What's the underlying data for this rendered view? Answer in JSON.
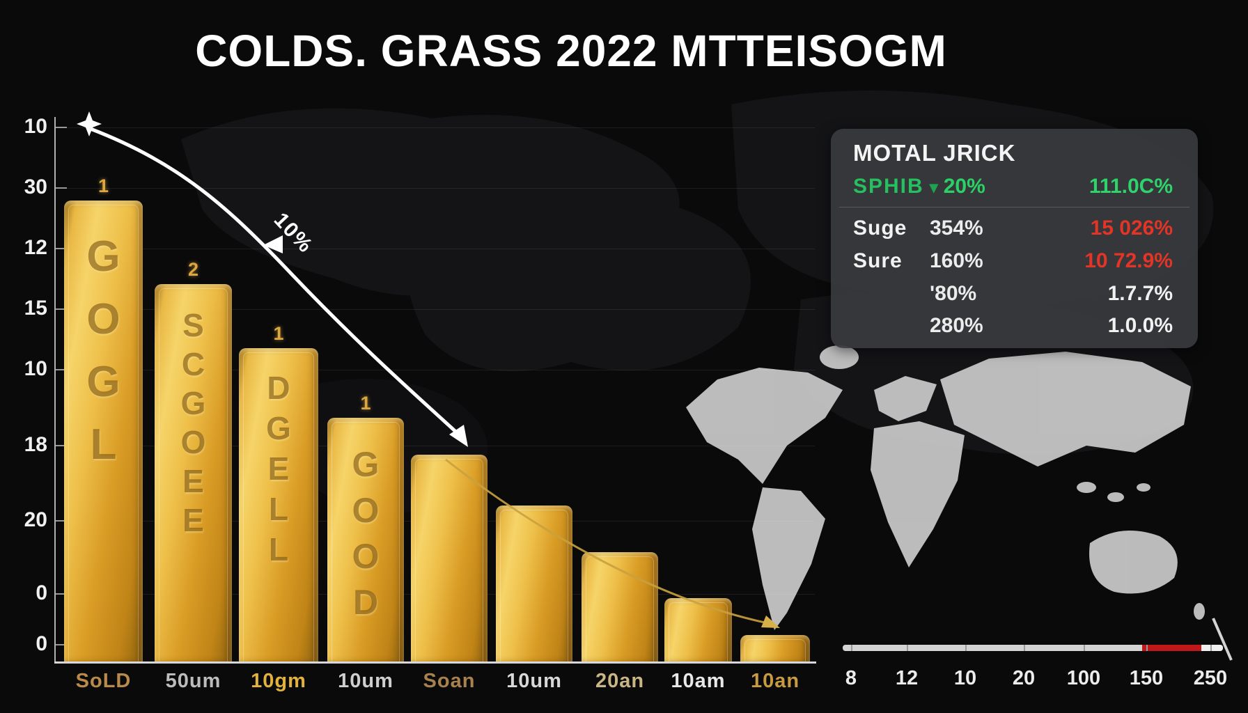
{
  "title": "COLDS. GRASS 2022 MTTEISOGM",
  "chart_data": {
    "type": "bar",
    "title": "COLDS. GRASS 2022 MTTEISOGM",
    "categories": [
      "SoLD",
      "50um",
      "10gm",
      "10um",
      "Soan",
      "10um",
      "20an",
      "10am",
      "10an"
    ],
    "values": [
      100,
      82,
      68,
      53,
      45,
      34,
      24,
      14,
      6
    ],
    "ylabel": "",
    "xlabel": "",
    "ylim": [
      0,
      100
    ],
    "grid": "faint horizontal",
    "y_tick_labels": [
      "10",
      "30",
      "12",
      "15",
      "10",
      "18",
      "20",
      "0",
      "0"
    ],
    "bar_rank_numbers": [
      "1",
      "2",
      "1",
      "1",
      "",
      "",
      "",
      "",
      ""
    ],
    "bar_embossed_text": [
      "GOGL",
      "SCGOEE",
      "DGELL",
      "GOOD",
      "",
      "",
      "",
      "",
      ""
    ],
    "x_labels": [
      {
        "text": "SoLD",
        "color": "#b98a4a"
      },
      {
        "text": "50um",
        "color": "#bcbcbc"
      },
      {
        "text": "10gm",
        "color": "#e3b23c"
      },
      {
        "text": "10um",
        "color": "#cfcfcf"
      },
      {
        "text": "Soan",
        "color": "#a8824e"
      },
      {
        "text": "10um",
        "color": "#d8d8d8"
      },
      {
        "text": "20an",
        "color": "#c9b684"
      },
      {
        "text": "10am",
        "color": "#e8e8e8"
      },
      {
        "text": "10an",
        "color": "#c79b3f"
      }
    ],
    "annotation": {
      "label": "10%",
      "description": "white curved arrow falling left-to-right across bars"
    },
    "secondary_axis_ticks": [
      "8",
      "12",
      "10",
      "20",
      "100",
      "150",
      "250"
    ]
  },
  "panel": {
    "header": "MOTAL JRICK",
    "highlight": {
      "symbol": "SPHIB",
      "arrow_glyph": "▾",
      "change": "20%",
      "value": "111.0C%"
    },
    "rows": [
      {
        "label": "Suge",
        "v1": "354%",
        "v2": "15 026%",
        "v2_color": "red"
      },
      {
        "label": "Sure",
        "v1": "160%",
        "v2": "10 72.9%",
        "v2_color": "red"
      },
      {
        "label": "",
        "v1": "'80%",
        "v2": "1.7.7%",
        "v2_color": "white"
      },
      {
        "label": "",
        "v1": "280%",
        "v2": "1.0.0%",
        "v2_color": "white"
      }
    ]
  },
  "colors": {
    "background": "#0a0a0b",
    "gold": "#e6b33c",
    "green": "#27c065",
    "red": "#e23527",
    "panel_bg": "#38393d",
    "map_gray": "#c6c6c6",
    "axis_gray": "#d4d4d4"
  }
}
